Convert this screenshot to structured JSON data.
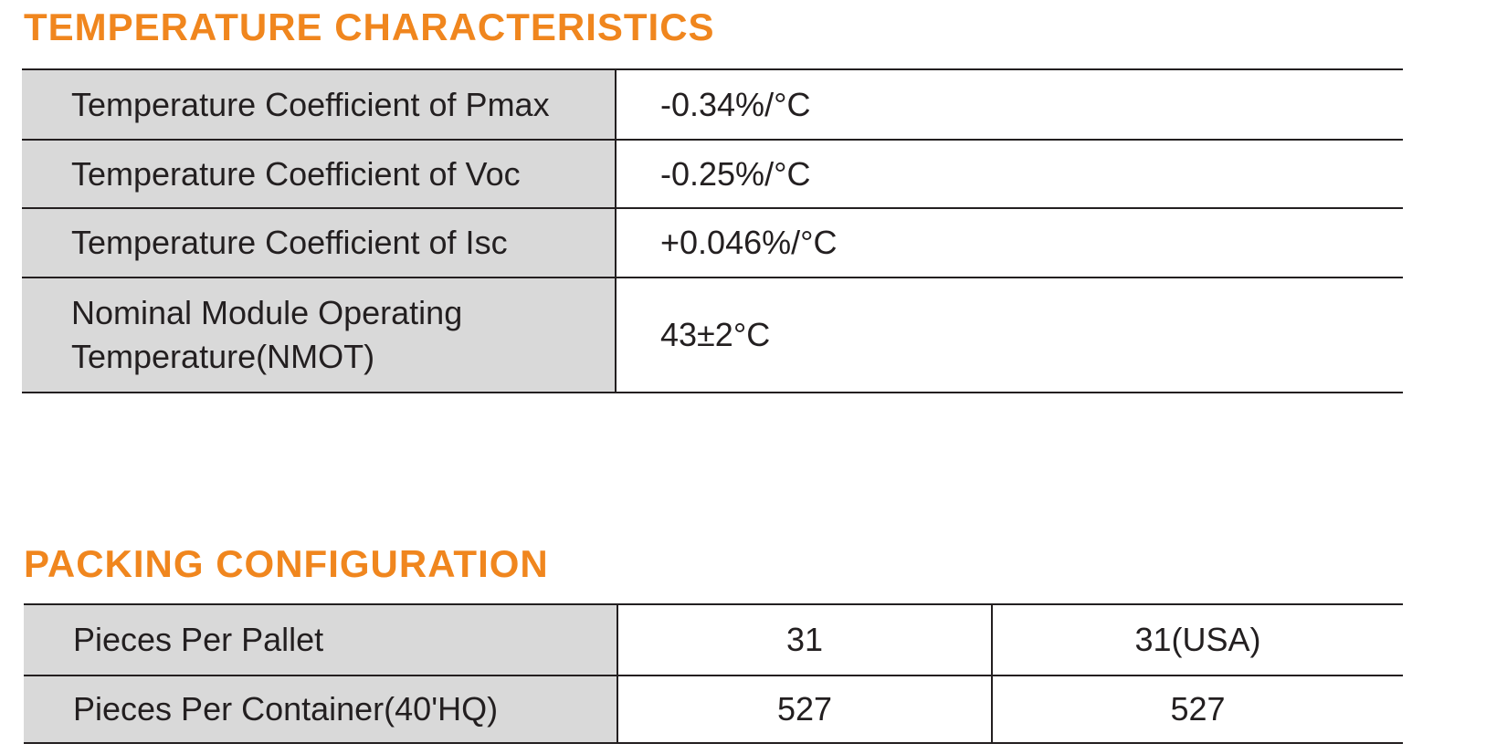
{
  "temperature": {
    "title": "TEMPERATURE CHARACTERISTICS",
    "rows": [
      [
        "Temperature Coefficient of Pmax",
        "-0.34%/°C"
      ],
      [
        "Temperature Coefficient of Voc",
        "-0.25%/°C"
      ],
      [
        "Temperature Coefficient of Isc",
        "+0.046%/°C"
      ],
      [
        "Nominal Module Operating Temperature(NMOT)",
        "43±2°C"
      ]
    ]
  },
  "packing": {
    "title": "PACKING CONFIGURATION",
    "rows": [
      [
        "Pieces Per Pallet",
        "31",
        "31(USA)"
      ],
      [
        "Pieces Per Container(40'HQ)",
        "527",
        "527"
      ]
    ]
  }
}
